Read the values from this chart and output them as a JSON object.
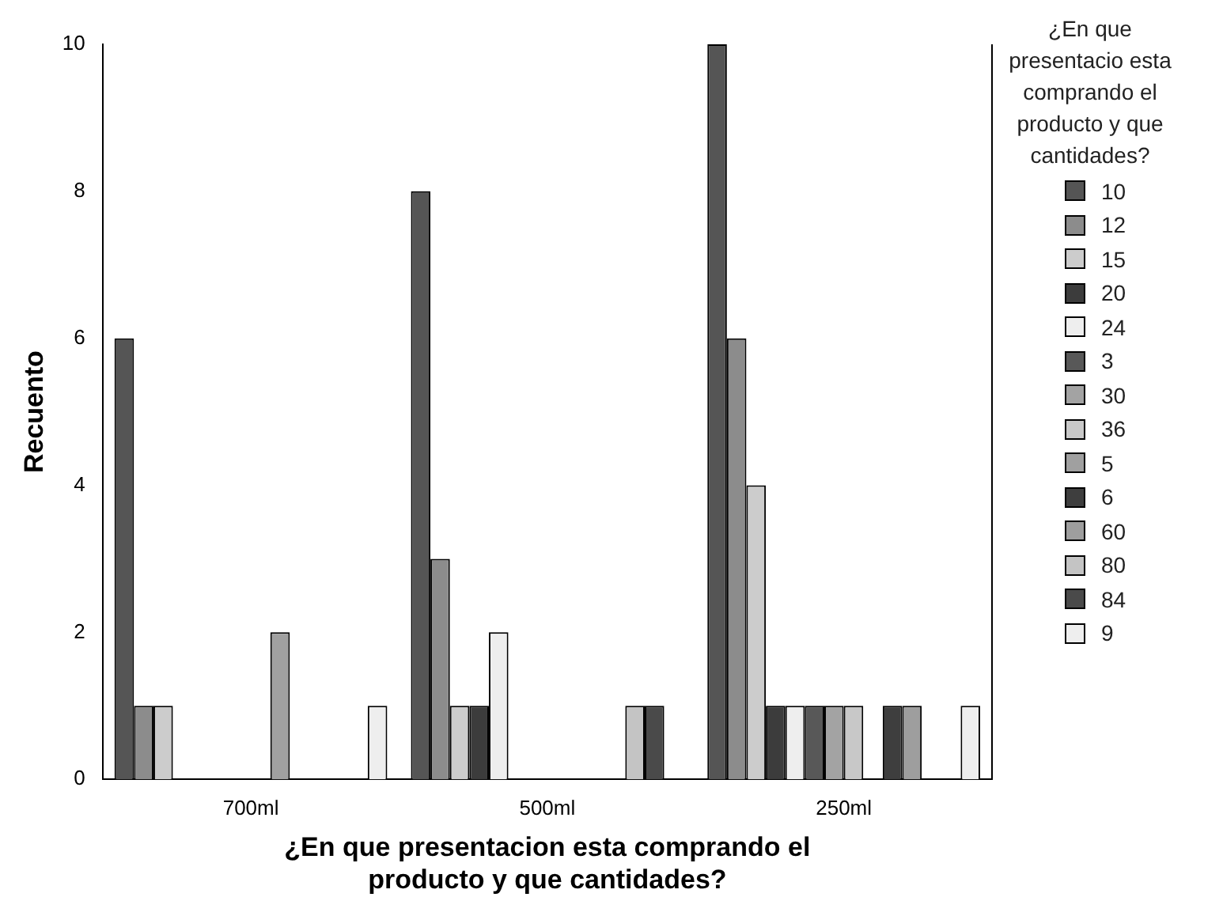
{
  "chart_data": {
    "type": "bar",
    "xlabel": "¿En que presentacion esta comprando el producto y que cantidades?",
    "ylabel": "Recuento",
    "legend_title": "¿En que presentacio esta comprando el producto y que cantidades?",
    "categories": [
      "700ml",
      "500ml",
      "250ml"
    ],
    "ylim": [
      0,
      10
    ],
    "yticks": [
      0,
      2,
      4,
      6,
      8,
      10
    ],
    "grid": false,
    "legend": "right",
    "series": [
      {
        "name": "10",
        "color": "#555555",
        "values": [
          6,
          8,
          10
        ]
      },
      {
        "name": "12",
        "color": "#8c8c8c",
        "values": [
          1,
          3,
          6
        ]
      },
      {
        "name": "15",
        "color": "#cccccc",
        "values": [
          1,
          1,
          4
        ]
      },
      {
        "name": "20",
        "color": "#3c3c3c",
        "values": [
          0,
          1,
          1
        ]
      },
      {
        "name": "24",
        "color": "#eeeeee",
        "values": [
          0,
          2,
          1
        ]
      },
      {
        "name": "3",
        "color": "#585858",
        "values": [
          0,
          0,
          1
        ]
      },
      {
        "name": "30",
        "color": "#a3a3a3",
        "values": [
          0,
          0,
          1
        ]
      },
      {
        "name": "36",
        "color": "#c8c8c8",
        "values": [
          0,
          0,
          1
        ]
      },
      {
        "name": "5",
        "color": "#a0a0a0",
        "values": [
          2,
          0,
          0
        ]
      },
      {
        "name": "6",
        "color": "#3e3e3e",
        "values": [
          0,
          0,
          1
        ]
      },
      {
        "name": "60",
        "color": "#9e9e9e",
        "values": [
          0,
          0,
          1
        ]
      },
      {
        "name": "80",
        "color": "#c4c4c4",
        "values": [
          0,
          1,
          0
        ]
      },
      {
        "name": "84",
        "color": "#4a4a4a",
        "values": [
          0,
          1,
          0
        ]
      },
      {
        "name": "9",
        "color": "#eeeeee",
        "values": [
          1,
          0,
          1
        ]
      }
    ]
  }
}
